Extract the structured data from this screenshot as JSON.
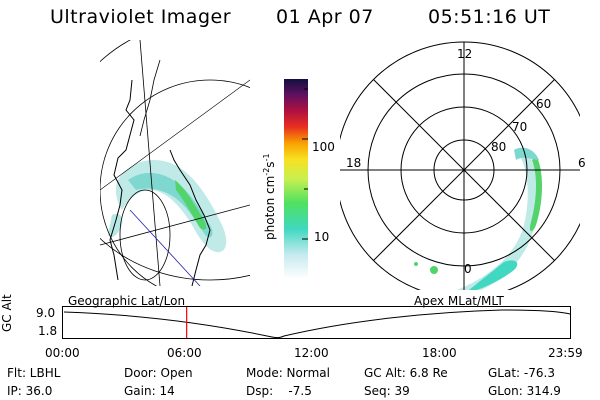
{
  "header": {
    "instrument": "Ultraviolet Imager",
    "date": "01 Apr 07",
    "time": "05:51:16 UT"
  },
  "colorbar": {
    "label": "photon cm",
    "label_sup1": "-2",
    "label_mid": "s",
    "label_sup2": "-1",
    "ticks": [
      "100",
      "10"
    ]
  },
  "polar": {
    "mlt_labels": [
      "12",
      "18",
      "6",
      "0"
    ],
    "lat_labels": [
      "60",
      "70",
      "80"
    ]
  },
  "timeline": {
    "left_title": "Geographic Lat/Lon",
    "right_title": "Apex MLat/MLT",
    "y_title": "GC Alt",
    "y_ticks": [
      "9.0",
      "1.8"
    ],
    "x_ticks": [
      "00:00",
      "06:00",
      "12:00",
      "18:00",
      "23:59"
    ],
    "current_time_fraction": 0.2439,
    "colors": {
      "marker": "#ff0000",
      "trace": "#000000"
    }
  },
  "footer": {
    "filter": "Flt: LBHL",
    "ip": "IP: 36.0",
    "door": "Door: Open",
    "gain": "Gain: 14",
    "mode": "Mode: Normal",
    "dsp": "Dsp:    -7.5",
    "gc_alt": "GC Alt: 6.8 Re",
    "seq": "Seq: 39",
    "glat": "GLat: -76.3",
    "glon": "GLon: 314.9"
  }
}
